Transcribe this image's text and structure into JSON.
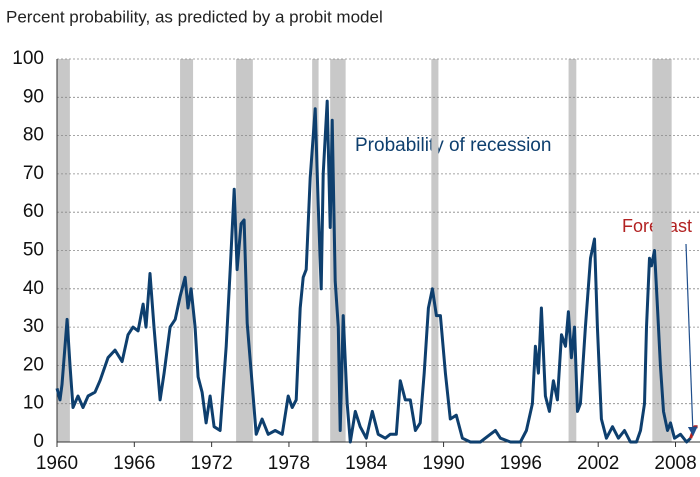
{
  "chart_data": {
    "type": "line",
    "title": "Percent probability, as predicted by a probit model",
    "annotations": [
      "Probability of recession",
      "Forecast"
    ],
    "xlim": [
      1960,
      2009.9
    ],
    "xticks": [
      1960,
      1966,
      1972,
      1978,
      1984,
      1990,
      1996,
      2002,
      2008
    ],
    "ylim": [
      0,
      100
    ],
    "yticks": [
      0,
      10,
      20,
      30,
      40,
      50,
      60,
      70,
      80,
      90,
      100
    ],
    "grid": true,
    "shaded_ranges": [
      [
        1960.0,
        1961.0
      ],
      [
        1969.55,
        1970.56
      ],
      [
        1973.9,
        1975.2
      ],
      [
        1979.8,
        1980.3
      ],
      [
        1981.2,
        1982.4
      ],
      [
        1989.05,
        1989.6
      ],
      [
        1999.7,
        2000.3
      ],
      [
        2006.2,
        2007.7
      ]
    ],
    "shade_color": "#c8c8c8",
    "series": [
      {
        "name": "Probability of recession",
        "color": "#0e3f6e",
        "x": [
          1960.0,
          1960.23,
          1960.39,
          1960.62,
          1960.78,
          1961.01,
          1961.24,
          1961.63,
          1962.02,
          1962.41,
          1962.95,
          1963.34,
          1963.96,
          1964.5,
          1965.05,
          1965.51,
          1965.9,
          1966.29,
          1966.68,
          1966.91,
          1967.22,
          1967.53,
          1968.0,
          1968.31,
          1968.78,
          1969.17,
          1969.55,
          1969.94,
          1970.17,
          1970.41,
          1970.72,
          1970.95,
          1971.26,
          1971.57,
          1971.88,
          1972.19,
          1972.66,
          1973.13,
          1973.44,
          1973.75,
          1973.98,
          1974.29,
          1974.52,
          1974.76,
          1975.15,
          1975.46,
          1975.92,
          1976.39,
          1976.93,
          1977.48,
          1977.94,
          1978.25,
          1978.56,
          1978.87,
          1979.11,
          1979.34,
          1979.65,
          1980.04,
          1980.27,
          1980.5,
          1980.66,
          1980.97,
          1981.2,
          1981.36,
          1981.59,
          1981.83,
          1981.98,
          1982.21,
          1982.52,
          1982.76,
          1983.15,
          1983.53,
          1984.0,
          1984.47,
          1984.93,
          1985.48,
          1985.86,
          1986.33,
          1986.64,
          1987.03,
          1987.42,
          1987.81,
          1988.19,
          1988.5,
          1988.82,
          1989.13,
          1989.44,
          1989.75,
          1990.14,
          1990.52,
          1990.99,
          1991.46,
          1992.08,
          1992.85,
          1993.63,
          1994.02,
          1994.41,
          1995.19,
          1995.96,
          1996.43,
          1996.89,
          1997.13,
          1997.36,
          1997.59,
          1997.9,
          1998.21,
          1998.52,
          1998.83,
          1999.15,
          1999.46,
          1999.69,
          1999.92,
          2000.16,
          2000.39,
          2000.62,
          2001.01,
          2001.4,
          2001.71,
          2001.94,
          2002.25,
          2002.64,
          2003.11,
          2003.57,
          2004.04,
          2004.5,
          2004.97,
          2005.28,
          2005.59,
          2005.75,
          2005.98,
          2006.14,
          2006.37,
          2006.6,
          2006.83,
          2007.07,
          2007.38,
          2007.61,
          2007.92,
          2008.39,
          2008.86,
          2009.17
        ],
        "values": [
          14,
          11,
          15,
          25,
          32,
          20,
          9,
          12,
          9,
          12,
          13,
          16,
          22,
          24,
          21,
          28,
          30,
          29,
          36,
          30,
          44,
          30,
          11,
          18,
          30,
          32,
          38,
          43,
          35,
          40,
          30,
          17,
          13,
          5,
          12,
          4,
          3,
          25,
          45,
          66,
          45,
          57,
          58,
          31,
          15,
          2,
          6,
          2,
          3,
          2,
          12,
          9,
          11,
          35,
          43,
          45,
          69,
          87,
          62,
          40,
          70,
          89,
          56,
          84,
          42,
          30,
          3,
          33,
          10,
          0,
          8,
          4,
          1,
          8,
          2,
          1,
          2,
          2,
          16,
          11,
          11,
          3,
          5,
          18,
          35,
          40,
          33,
          33,
          18,
          6,
          7,
          1,
          0,
          0,
          2,
          3,
          1,
          0,
          0,
          3,
          10,
          25,
          18,
          35,
          12,
          8,
          16,
          11,
          28,
          25,
          34,
          22,
          30,
          8,
          10,
          30,
          48,
          53,
          30,
          6,
          1,
          4,
          1,
          3,
          0,
          0,
          3,
          10,
          30,
          48,
          46,
          50,
          35,
          20,
          8,
          3,
          5,
          1,
          2,
          0,
          1
        ]
      },
      {
        "name": "Forecast",
        "color": "#b22222",
        "x": [
          2009.17,
          2009.48,
          2009.71
        ],
        "values": [
          1,
          4,
          4
        ]
      }
    ]
  }
}
